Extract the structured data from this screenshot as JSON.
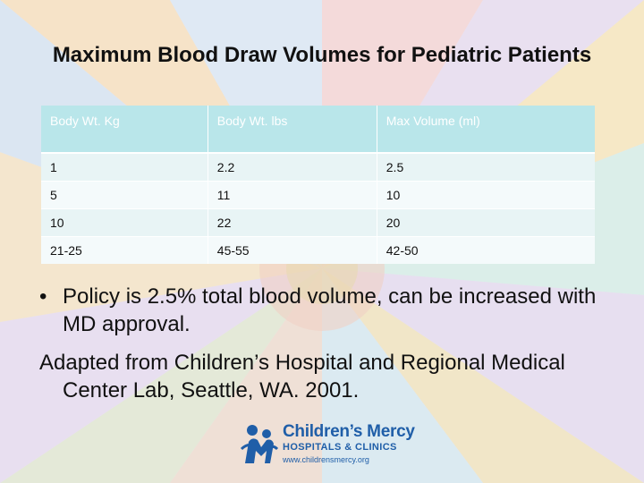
{
  "slide": {
    "title": "Maximum Blood Draw Volumes for Pediatric Patients",
    "table": {
      "headers": [
        "Body Wt. Kg",
        "Body Wt. lbs",
        "Max Volume (ml)"
      ],
      "rows": [
        [
          "1",
          "2.2",
          "2.5"
        ],
        [
          "5",
          "11",
          "10"
        ],
        [
          "10",
          "22",
          "20"
        ],
        [
          "21-25",
          "45-55",
          "42-50"
        ]
      ]
    },
    "bullet": "Policy is 2.5% total blood volume, can be increased with MD approval.",
    "bullet_marker": "•",
    "adapted": "Adapted from Children’s Hospital and Regional Medical Center Lab, Seattle, WA. 2001.",
    "logo": {
      "name": "Children’s Mercy",
      "sub": "HOSPITALS & CLINICS",
      "url": "www.childrensmercy.org",
      "icon": "children-figure-logo-icon",
      "color": "#1f5ea8"
    }
  }
}
